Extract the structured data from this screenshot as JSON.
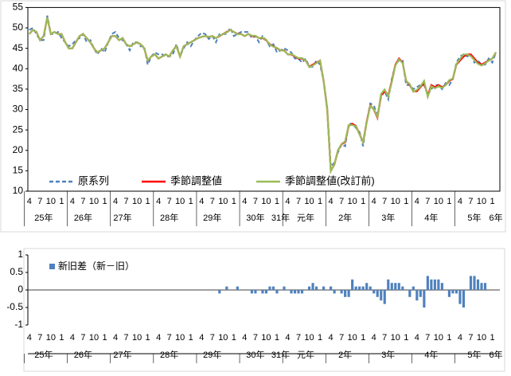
{
  "chart_data": [
    {
      "type": "line",
      "categories": [
        "4",
        null,
        null,
        "7",
        null,
        null,
        "10",
        null,
        null,
        "1",
        null,
        null,
        "4",
        null,
        null,
        "7",
        null,
        null,
        "10",
        null,
        null,
        "1",
        null,
        null,
        "4",
        null,
        null,
        "7",
        null,
        null,
        "10",
        null,
        null,
        "1",
        null,
        null,
        "4",
        null,
        null,
        "7",
        null,
        null,
        "10",
        null,
        null,
        "1",
        null,
        null,
        "4",
        null,
        null,
        "7",
        null,
        null,
        "10",
        null,
        null,
        "1",
        null,
        null,
        "4",
        null,
        null,
        "7",
        null,
        null,
        "10",
        null,
        null,
        "1",
        null,
        null,
        "4",
        null,
        null,
        "7",
        null,
        null,
        "10",
        null,
        null,
        "1",
        null,
        null,
        "4",
        null,
        null,
        "7",
        null,
        null,
        "10",
        null,
        null,
        "1",
        null,
        null,
        "4",
        null,
        null,
        "7",
        null,
        null,
        "10",
        null,
        null,
        "1",
        null,
        null,
        "4",
        null,
        null,
        "7",
        null,
        null,
        "10",
        null,
        null,
        "1",
        null,
        null,
        "4",
        null,
        null,
        "7",
        null,
        null,
        "10",
        null,
        null,
        "1",
        null
      ],
      "x_groups": [
        null,
        null,
        null,
        null,
        "25年",
        null,
        null,
        null,
        null,
        null,
        null,
        null,
        null,
        null,
        null,
        "26年",
        null,
        null,
        null,
        null,
        null,
        null,
        null,
        null,
        null,
        null,
        "27年",
        null,
        null,
        null,
        null,
        null,
        null,
        null,
        null,
        null,
        null,
        null,
        null,
        "28年",
        null,
        null,
        null,
        null,
        null,
        null,
        null,
        null,
        null,
        null,
        null,
        "29年",
        null,
        null,
        null,
        null,
        null,
        null,
        null,
        null,
        null,
        null,
        null,
        "30年",
        null,
        null,
        null,
        null,
        null,
        null,
        "31年",
        null,
        null,
        null,
        null,
        null,
        null,
        "元年",
        null,
        null,
        null,
        null,
        null,
        null,
        null,
        null,
        null,
        null,
        "2年",
        null,
        null,
        null,
        null,
        null,
        null,
        null,
        null,
        null,
        null,
        null,
        "3年",
        null,
        null,
        null,
        null,
        null,
        null,
        null,
        null,
        null,
        null,
        null,
        "4年",
        null,
        null,
        null,
        null,
        null,
        null,
        null,
        null,
        null,
        null,
        null,
        "5年",
        null,
        null,
        null,
        null,
        null,
        "6年"
      ],
      "ylim": [
        10,
        55
      ],
      "yticks": [
        10,
        15,
        20,
        25,
        30,
        35,
        40,
        45,
        50,
        55
      ],
      "legend": "lower left",
      "series": [
        {
          "name": "原系列",
          "color": "#4f81bd",
          "dashed": true,
          "values": [
            49.5,
            50,
            48.5,
            47,
            47,
            53,
            48.5,
            48.5,
            49,
            47.5,
            46.5,
            45.5,
            46,
            47,
            47.5,
            48.5,
            46.5,
            47,
            45,
            43.5,
            45,
            44,
            46.5,
            48.5,
            49,
            47.5,
            47,
            46,
            44.5,
            46.5,
            46.5,
            45.5,
            45.5,
            41,
            43,
            44,
            43.5,
            43.5,
            43,
            43,
            43.5,
            46,
            43,
            45,
            46.5,
            45.5,
            47,
            48,
            48.8,
            48.5,
            47.3,
            48,
            46.5,
            48.5,
            48.5,
            48.5,
            50,
            48,
            48.5,
            49,
            49,
            49,
            47.5,
            48,
            46.5,
            48,
            47,
            45.5,
            46,
            44,
            44.5,
            45,
            44.5,
            44,
            42.5,
            42.5,
            41.5,
            42.5,
            40.5,
            40.5,
            42,
            41,
            37,
            30.5,
            16,
            17,
            19.5,
            21.5,
            21,
            26.5,
            26.5,
            25.5,
            24.5,
            21,
            27,
            31.5,
            31,
            28.5,
            33,
            34.5,
            32.5,
            37.5,
            41,
            42,
            42,
            36,
            36,
            35,
            35.5,
            36,
            36,
            33.5,
            35,
            36,
            36,
            35,
            36.5,
            36,
            37.5,
            41.5,
            43,
            43.5,
            43,
            43.5,
            41.5,
            42,
            41,
            41,
            42.5,
            41.5,
            44
          ]
        },
        {
          "name": "季節調整値",
          "color": "#ff0000",
          "dashed": false,
          "values": [
            48.5,
            49.5,
            49,
            47,
            48,
            52.5,
            48.5,
            49,
            48.5,
            48.5,
            46.5,
            45,
            45,
            46.5,
            48,
            48.5,
            47.5,
            46.5,
            45,
            44,
            44.5,
            45,
            46.5,
            48,
            48,
            47,
            47.5,
            46,
            45.5,
            46,
            46.5,
            46,
            45,
            42,
            43,
            43.5,
            42.5,
            43,
            43.5,
            43,
            44.5,
            45.5,
            43,
            45.5,
            46,
            46.5,
            47,
            47.5,
            47.8,
            48,
            47.8,
            48,
            47.5,
            48,
            48.5,
            49,
            49.5,
            49,
            48.5,
            48.5,
            48,
            48.5,
            48,
            48,
            47.5,
            47.5,
            47,
            46,
            45.5,
            45,
            44.5,
            44.5,
            43.5,
            43.5,
            43,
            42.5,
            42.5,
            42,
            40.5,
            41,
            41.5,
            42,
            37,
            30,
            15,
            16.5,
            20,
            21.5,
            22,
            26,
            26.5,
            26,
            24,
            22,
            27,
            31,
            30,
            28,
            33.5,
            34.5,
            33.5,
            37,
            41,
            42.5,
            41.5,
            37,
            36,
            34.5,
            34.5,
            35.5,
            36.5,
            33.5,
            36,
            35.5,
            36,
            35.5,
            36,
            37,
            37.5,
            41,
            42,
            43,
            43.5,
            43.5,
            42.5,
            41.5,
            41,
            41.5,
            42,
            42.5,
            44
          ]
        },
        {
          "name": "季節調整値(改訂前)",
          "color": "#9bbb59",
          "dashed": false,
          "values": [
            48.5,
            49.5,
            49,
            47,
            48,
            52.5,
            48.5,
            49,
            48.5,
            48.5,
            46.5,
            45,
            45,
            46.5,
            48,
            48.5,
            47.5,
            46.5,
            45,
            44,
            44.5,
            45,
            46.5,
            48,
            48,
            47,
            47.5,
            46,
            45.5,
            46,
            46.5,
            46,
            45,
            42,
            43,
            43.5,
            42.5,
            43,
            43.5,
            43,
            44.5,
            45.5,
            43,
            45.5,
            46,
            46.5,
            47,
            47.5,
            47.8,
            48,
            47.8,
            48,
            47.5,
            48.1,
            48.5,
            48.9,
            49.5,
            49,
            48.4,
            48.5,
            48,
            48.5,
            48.1,
            48.1,
            47.5,
            47.6,
            47.1,
            45.9,
            45.4,
            45.1,
            44.5,
            44.4,
            43.5,
            43.6,
            43.1,
            42.6,
            42.6,
            42,
            40.4,
            40.8,
            41.4,
            42,
            36.9,
            30,
            14.9,
            16.6,
            20,
            21.6,
            22.2,
            26.2,
            26.2,
            25.9,
            23.9,
            21.9,
            26.8,
            30.9,
            30.1,
            28.2,
            33.8,
            34.9,
            33.2,
            36.8,
            40.8,
            42.3,
            41.4,
            37,
            36.2,
            34.4,
            34.8,
            35.7,
            37,
            33.1,
            35.7,
            35.2,
            35.7,
            35.3,
            36,
            37.2,
            37.6,
            41.1,
            42.4,
            43.5,
            43.5,
            43.1,
            42.1,
            41.2,
            40.8,
            41.3,
            42,
            42.5,
            44
          ]
        }
      ]
    },
    {
      "type": "bar",
      "categories": [
        "4",
        null,
        null,
        "7",
        null,
        null,
        "10",
        null,
        null,
        "1",
        null,
        null,
        "4",
        null,
        null,
        "7",
        null,
        null,
        "10",
        null,
        null,
        "1",
        null,
        null,
        "4",
        null,
        null,
        "7",
        null,
        null,
        "10",
        null,
        null,
        "1",
        null,
        null,
        "4",
        null,
        null,
        "7",
        null,
        null,
        "10",
        null,
        null,
        "1",
        null,
        null,
        "4",
        null,
        null,
        "7",
        null,
        null,
        "10",
        null,
        null,
        "1",
        null,
        null,
        "4",
        null,
        null,
        "7",
        null,
        null,
        "10",
        null,
        null,
        "1",
        null,
        null,
        "4",
        null,
        null,
        "7",
        null,
        null,
        "10",
        null,
        null,
        "1",
        null,
        null,
        "4",
        null,
        null,
        "7",
        null,
        null,
        "10",
        null,
        null,
        "1",
        null,
        null,
        "4",
        null,
        null,
        "7",
        null,
        null,
        "10",
        null,
        null,
        "1",
        null,
        null,
        "4",
        null,
        null,
        "7",
        null,
        null,
        "10",
        null,
        null,
        "1",
        null,
        null,
        "4",
        null,
        null,
        "7",
        null,
        null,
        "10",
        null,
        null,
        "1",
        null
      ],
      "x_groups": [
        null,
        null,
        null,
        null,
        "25年",
        null,
        null,
        null,
        null,
        null,
        null,
        null,
        null,
        null,
        null,
        "26年",
        null,
        null,
        null,
        null,
        null,
        null,
        null,
        null,
        null,
        null,
        "27年",
        null,
        null,
        null,
        null,
        null,
        null,
        null,
        null,
        null,
        null,
        null,
        null,
        "28年",
        null,
        null,
        null,
        null,
        null,
        null,
        null,
        null,
        null,
        null,
        null,
        "29年",
        null,
        null,
        null,
        null,
        null,
        null,
        null,
        null,
        null,
        null,
        null,
        "30年",
        null,
        null,
        null,
        null,
        null,
        null,
        "31年",
        null,
        null,
        null,
        null,
        null,
        null,
        "元年",
        null,
        null,
        null,
        null,
        null,
        null,
        null,
        null,
        null,
        null,
        "2年",
        null,
        null,
        null,
        null,
        null,
        null,
        null,
        null,
        null,
        null,
        null,
        "3年",
        null,
        null,
        null,
        null,
        null,
        null,
        null,
        null,
        null,
        null,
        null,
        "4年",
        null,
        null,
        null,
        null,
        null,
        null,
        null,
        null,
        null,
        null,
        null,
        "5年",
        null,
        null,
        null,
        null,
        null,
        "6年"
      ],
      "ylim": [
        -1,
        1
      ],
      "yticks": [
        -1,
        -0.5,
        0,
        0.5,
        1
      ],
      "legend": "upper left",
      "series": [
        {
          "name": "新旧差（新－旧）",
          "color": "#4f81bd",
          "values": [
            0,
            0,
            0,
            0,
            0,
            0,
            0,
            0,
            0,
            0,
            0,
            0,
            0,
            0,
            0,
            0,
            0,
            0,
            0,
            0,
            0,
            0,
            0,
            0,
            0,
            0,
            0,
            0,
            0,
            0,
            0,
            0,
            0,
            0,
            0,
            0,
            0,
            0,
            0,
            0,
            0,
            0,
            0,
            0,
            0,
            0,
            0,
            0,
            0,
            0,
            0,
            0,
            0,
            -0.1,
            0,
            0.1,
            0,
            0,
            0.1,
            0,
            0,
            0,
            -0.1,
            -0.1,
            0,
            -0.1,
            -0.1,
            0.1,
            0.1,
            -0.1,
            0,
            0.1,
            0,
            -0.1,
            -0.1,
            -0.1,
            -0.1,
            0,
            0.1,
            0.2,
            0.1,
            0,
            0.1,
            0,
            0.1,
            -0.1,
            0,
            -0.1,
            -0.2,
            -0.2,
            0.3,
            0.1,
            0.1,
            0.1,
            0.2,
            0.1,
            -0.1,
            -0.2,
            -0.3,
            -0.4,
            0.3,
            0.2,
            0.2,
            0.2,
            0.1,
            0,
            -0.2,
            0.1,
            -0.3,
            -0.2,
            -0.5,
            0.4,
            0.3,
            0.3,
            0.3,
            0.2,
            0,
            -0.2,
            -0.1,
            -0.1,
            -0.4,
            -0.5,
            0,
            0.4,
            0.4,
            0.3,
            0.2,
            0.2,
            0,
            0,
            0
          ]
        }
      ]
    }
  ]
}
